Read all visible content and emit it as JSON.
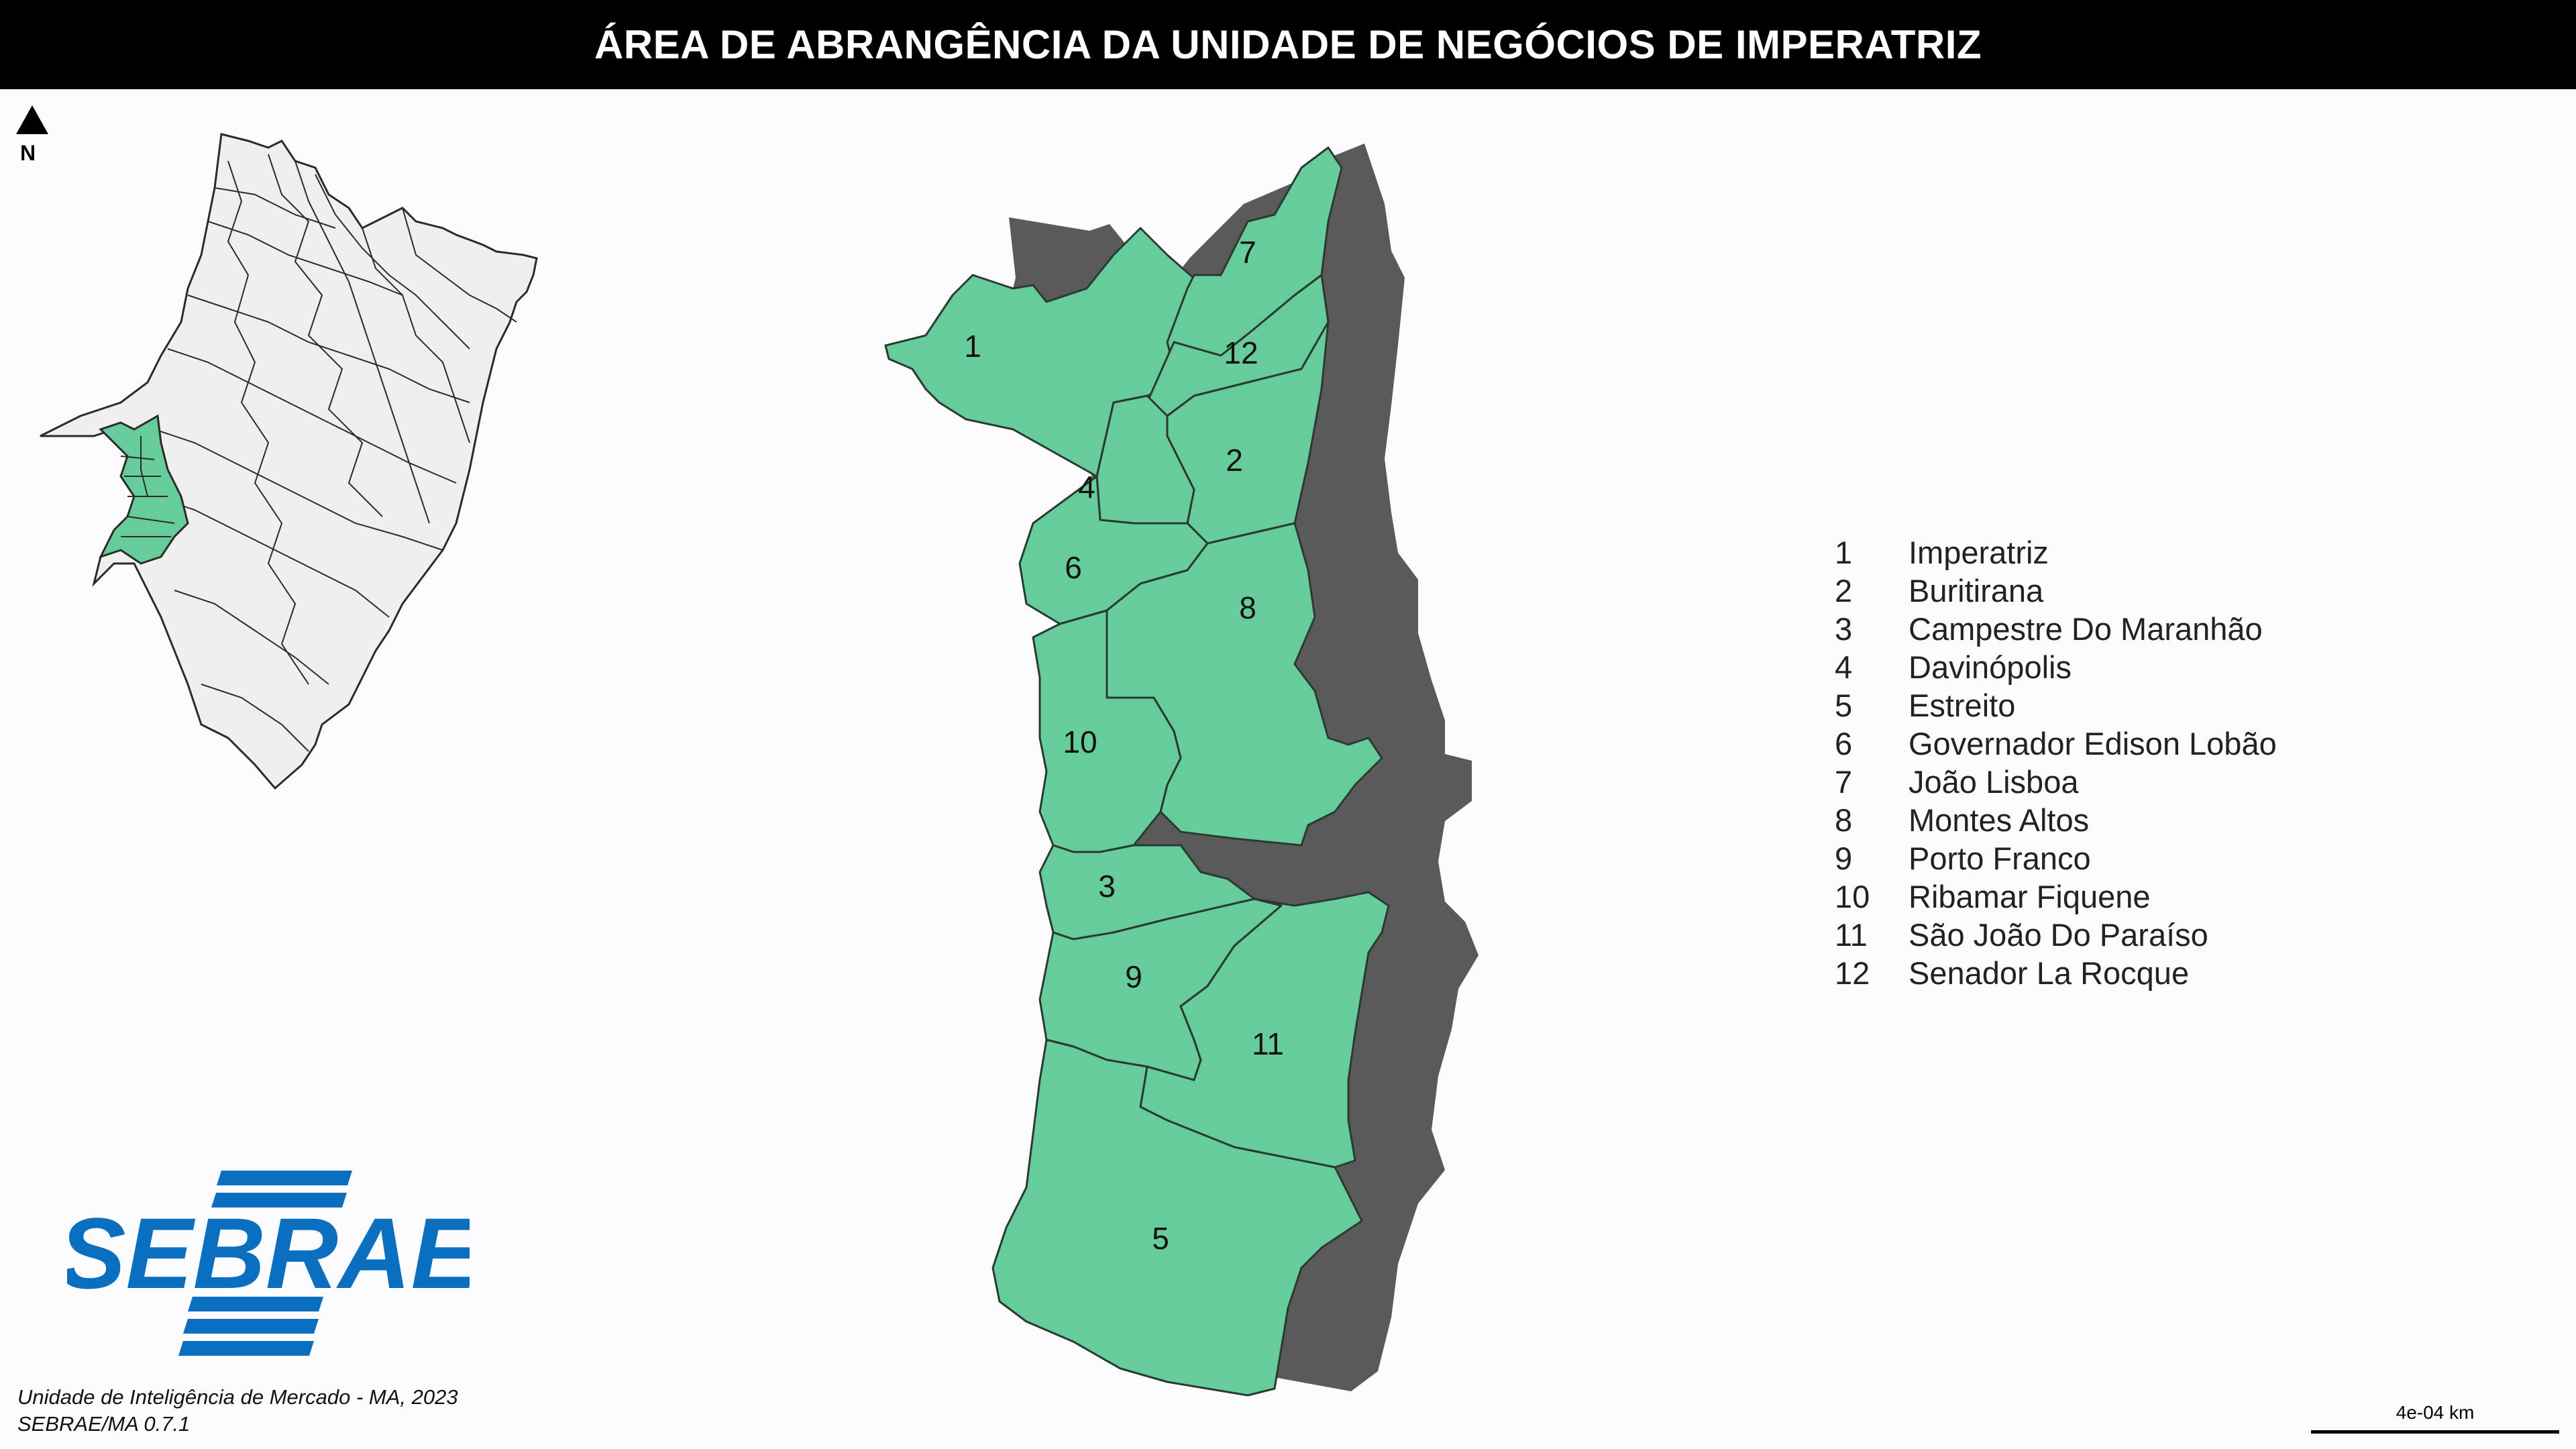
{
  "title": "ÁREA DE ABRANGÊNCIA DA UNIDADE DE NEGÓCIOS DE IMPERATRIZ",
  "north": {
    "label": "N",
    "icon": "north-arrow-icon"
  },
  "colors": {
    "region_fill": "#66cc99",
    "region_stroke": "#2a3a32",
    "shadow": "#5a5a5a",
    "title_bg": "#000000",
    "brand_blue": "#0a6fbf"
  },
  "regions": [
    {
      "id": "1",
      "name": "Imperatriz"
    },
    {
      "id": "2",
      "name": "Buritirana"
    },
    {
      "id": "3",
      "name": "Campestre Do Maranhão"
    },
    {
      "id": "4",
      "name": "Davinópolis"
    },
    {
      "id": "5",
      "name": "Estreito"
    },
    {
      "id": "6",
      "name": "Governador Edison Lobão"
    },
    {
      "id": "7",
      "name": "João Lisboa"
    },
    {
      "id": "8",
      "name": "Montes Altos"
    },
    {
      "id": "9",
      "name": "Porto Franco"
    },
    {
      "id": "10",
      "name": "Ribamar Fiquene"
    },
    {
      "id": "11",
      "name": "São João Do Paraíso"
    },
    {
      "id": "12",
      "name": "Senador La Rocque"
    }
  ],
  "logo": {
    "text": "SEBRAE"
  },
  "credits": {
    "line1": "Unidade de Inteligência de Mercado - MA, 2023",
    "line2": "SEBRAE/MA 0.7.1"
  },
  "scale": {
    "label": "4e-04 km"
  }
}
